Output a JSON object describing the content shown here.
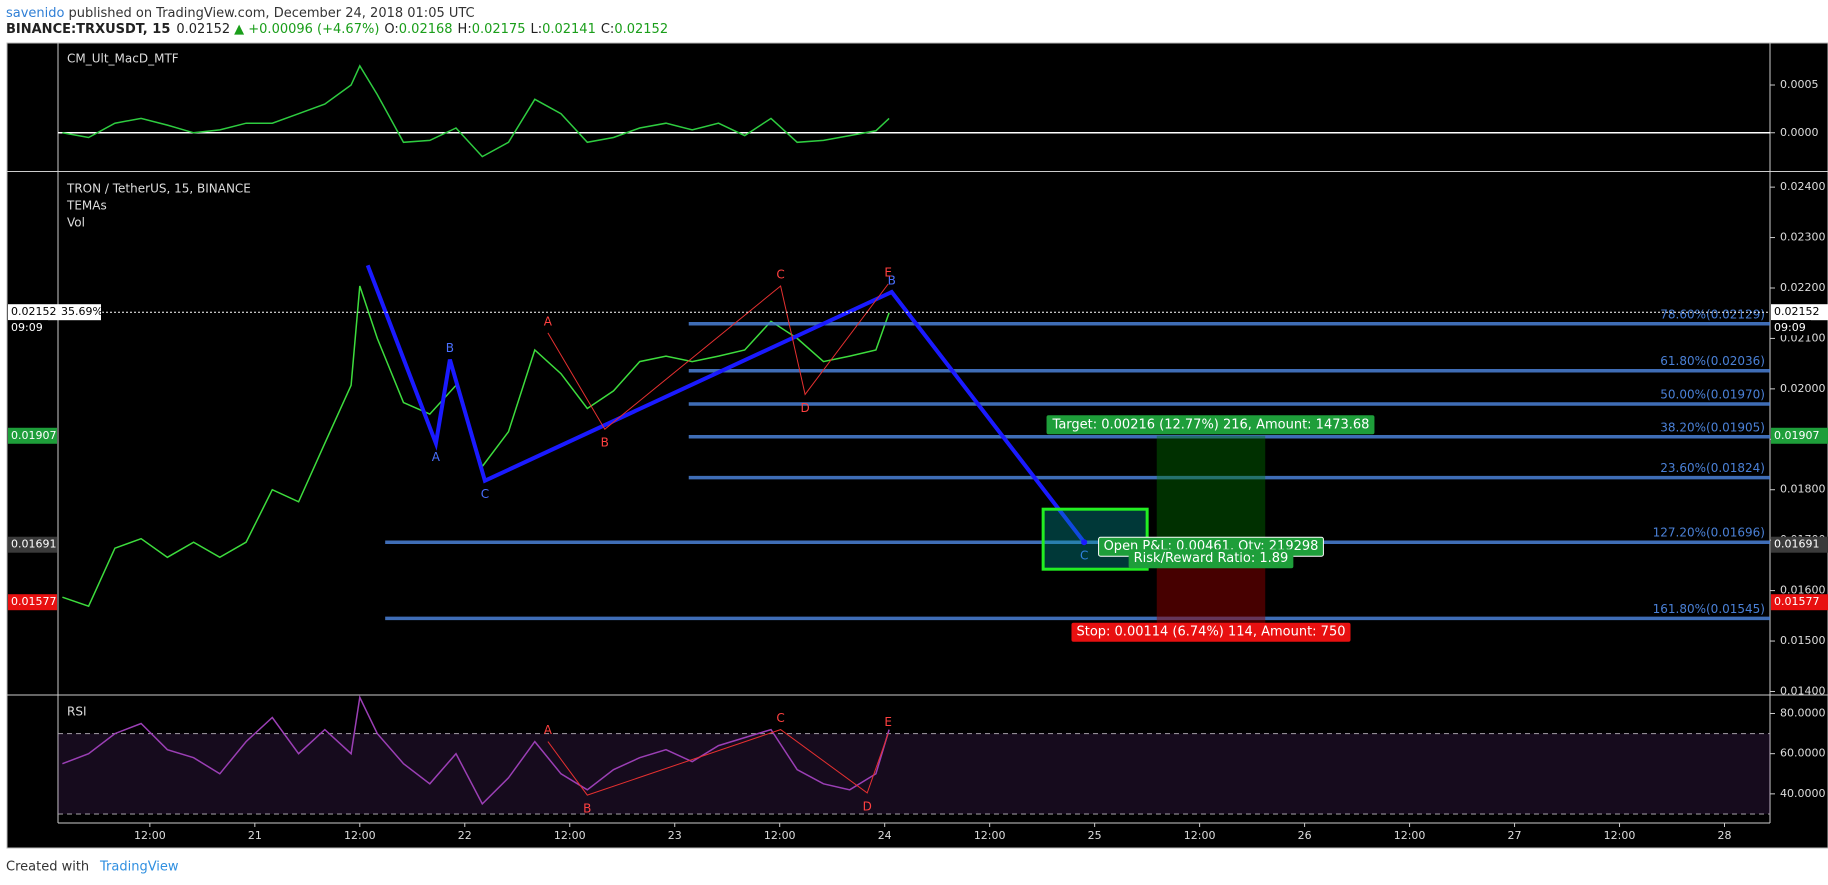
{
  "header": {
    "author": "savenido",
    "published": "published on TradingView.com, December 24, 2018 01:05 UTC",
    "symbol": "BINANCE:TRXUSDT, 15",
    "last": "0.02152",
    "change": "▲ +0.00096 (+4.67%)",
    "ohlc": [
      {
        "key": "O:",
        "value": "0.02168"
      },
      {
        "key": "H:",
        "value": "0.02175"
      },
      {
        "key": "L:",
        "value": "0.02141"
      },
      {
        "key": "C:",
        "value": "0.02152"
      }
    ]
  },
  "footer": {
    "created": "Created with",
    "brand": "TradingView"
  },
  "chart_data": [
    {
      "type": "line",
      "title": "CM_Ult_MacD_MTF",
      "x": [
        2,
        5,
        8,
        11,
        14,
        17,
        20,
        23,
        26,
        29,
        32,
        35,
        36,
        38,
        41,
        44,
        47,
        50,
        53,
        56,
        59,
        62,
        65,
        68,
        71,
        74,
        77,
        80,
        83,
        86,
        89,
        92,
        95,
        96.5
      ],
      "values": [
        0,
        -5e-05,
        0.0001,
        0.00015,
        8e-05,
        0,
        3e-05,
        0.0001,
        0.0001,
        0.0002,
        0.0003,
        0.0005,
        0.0007,
        0.0004,
        -0.0001,
        -8e-05,
        5e-05,
        -0.00025,
        -0.0001,
        0.00035,
        0.0002,
        -0.0001,
        -5e-05,
        5e-05,
        0.0001,
        3e-05,
        0.0001,
        -3e-05,
        0.00015,
        -0.0001,
        -8e-05,
        -3e-05,
        2e-05,
        0.00015
      ],
      "color": "#2ecc40",
      "baseline": 0,
      "ylim": [
        -0.00039,
        0.00094
      ],
      "yticks": [
        {
          "value": 0,
          "label": "0.0000"
        },
        {
          "value": 0.0005,
          "label": "0.0005"
        }
      ]
    },
    {
      "type": "line",
      "title": "TRON / TetherUS, 15, BINANCE",
      "legend_items": [
        "TEMAs",
        "Vol"
      ],
      "x": [
        2,
        5,
        8,
        11,
        14,
        17,
        20,
        23,
        26,
        29,
        32,
        35,
        36,
        38,
        41,
        44,
        47,
        50,
        53,
        56,
        59,
        62,
        65,
        68,
        71,
        74,
        77,
        80,
        83,
        86,
        89,
        92,
        95,
        96.5
      ],
      "values": [
        0.01587,
        0.01569,
        0.01684,
        0.01703,
        0.01666,
        0.01696,
        0.01666,
        0.01696,
        0.018,
        0.01776,
        0.01892,
        0.02007,
        0.02204,
        0.021,
        0.01973,
        0.0195,
        0.02007,
        0.01846,
        0.01915,
        0.02077,
        0.0203,
        0.01961,
        0.01996,
        0.02054,
        0.02065,
        0.02054,
        0.02065,
        0.02077,
        0.02134,
        0.021,
        0.02054,
        0.02065,
        0.02077,
        0.02151
      ],
      "color": "#3ddc3d",
      "ylim": [
        0.01395,
        0.02428
      ],
      "yticks": [
        {
          "value": 0.014,
          "label": "0.01400"
        },
        {
          "value": 0.015,
          "label": "0.01500"
        },
        {
          "value": 0.016,
          "label": "0.01600"
        },
        {
          "value": 0.017,
          "label": "0.01700"
        },
        {
          "value": 0.018,
          "label": "0.01800"
        },
        {
          "value": 0.019,
          "label": "0.01900"
        },
        {
          "value": 0.02,
          "label": "0.02000"
        },
        {
          "value": 0.021,
          "label": "0.02100"
        },
        {
          "value": 0.022,
          "label": "0.02200"
        },
        {
          "value": 0.023,
          "label": "0.02300"
        },
        {
          "value": 0.024,
          "label": "0.02400"
        }
      ],
      "price_line": {
        "value": 0.02152,
        "label": "0.02152",
        "change_label": "35.69%",
        "countdown": "09:09"
      },
      "axis_markers": [
        {
          "value": 0.01907,
          "label": "0.01907",
          "color": "#1e9e3a"
        },
        {
          "value": 0.01691,
          "label": "0.01691",
          "color": "#3a3a3a"
        },
        {
          "value": 0.01577,
          "label": "0.01577",
          "color": "#e81010"
        }
      ],
      "fib_levels": [
        {
          "value": 0.02129,
          "label": "78.60%(0.02129)",
          "from": 73.6
        },
        {
          "value": 0.02036,
          "label": "61.80%(0.02036)",
          "from": 73.6
        },
        {
          "value": 0.0197,
          "label": "50.00%(0.01970)",
          "from": 73.6
        },
        {
          "value": 0.01905,
          "label": "38.20%(0.01905)",
          "from": 73.6
        },
        {
          "value": 0.01824,
          "label": "23.60%(0.01824)",
          "from": 73.6
        },
        {
          "value": 0.01696,
          "label": "127.20%(0.01696)",
          "from": 38.9
        },
        {
          "value": 0.01545,
          "label": "161.80%(0.01545)",
          "from": 38.9
        }
      ],
      "fib_color": "#4a80d6",
      "patterns": [
        {
          "color": "#1a1aff",
          "width": 4,
          "x": [
            36.9,
            44.7,
            46.3,
            50.3,
            96.8,
            118.8
          ],
          "y": [
            0.02245,
            0.01892,
            0.02058,
            0.01818,
            0.02192,
            0.01696
          ],
          "labels": [
            null,
            "A",
            "B",
            "C",
            "B",
            "C"
          ],
          "label_color": "#4a70ff"
        },
        {
          "color": "#e53030",
          "width": 1,
          "x": [
            57.5,
            64,
            84.1,
            86.9,
            96.4
          ],
          "y": [
            0.02111,
            0.0192,
            0.02204,
            0.01989,
            0.02208
          ],
          "labels": [
            "A",
            "B",
            "C",
            "D",
            "E"
          ],
          "label_color": "#ff4040"
        }
      ],
      "position": {
        "from": 127.1,
        "to": 139.5,
        "entry": 0.01691,
        "target": 0.01907,
        "stop": 0.01577,
        "target_label": "Target: 0.00216 (12.77%) 216, Amount: 1473.68",
        "pnl_label": "Open P&L: 0.00461, Qty: 219298",
        "ratio_label": "Risk/Reward Ratio: 1.89",
        "stop_label": "Stop: 0.00114 (6.74%) 114, Amount: 750"
      }
    },
    {
      "type": "line",
      "title": "RSI",
      "x": [
        2,
        5,
        8,
        11,
        14,
        17,
        20,
        23,
        26,
        29,
        32,
        35,
        36,
        38,
        41,
        44,
        47,
        50,
        53,
        56,
        59,
        62,
        65,
        68,
        71,
        74,
        77,
        80,
        83,
        86,
        89,
        92,
        95,
        96.5
      ],
      "values": [
        55,
        60,
        70,
        75,
        62,
        58,
        50,
        66,
        78,
        60,
        72,
        60,
        88,
        70,
        55,
        45,
        60,
        35,
        48,
        66,
        50,
        42,
        52,
        58,
        62,
        56,
        64,
        68,
        72,
        52,
        45,
        42,
        50,
        72
      ],
      "color": "#9b3fb5",
      "bands": [
        70,
        30
      ],
      "patterns": [
        {
          "color": "#e53030",
          "width": 1,
          "x": [
            57.5,
            62,
            84.1,
            94,
            96.4
          ],
          "y": [
            66,
            39.4,
            72,
            40.5,
            70
          ],
          "labels": [
            "A",
            "B",
            "C",
            "D",
            "E"
          ],
          "label_color": "#ff4040"
        }
      ],
      "ylim": [
        25.5,
        88.7
      ],
      "yticks": [
        {
          "value": 40,
          "label": "40.0000"
        },
        {
          "value": 60,
          "label": "60.0000"
        },
        {
          "value": 80,
          "label": "80.0000"
        }
      ],
      "xlim": [
        1.5,
        197.2
      ],
      "xticks": [
        {
          "value": 12,
          "label": "12:00"
        },
        {
          "value": 24,
          "label": "21"
        },
        {
          "value": 36,
          "label": "12:00"
        },
        {
          "value": 48,
          "label": "22"
        },
        {
          "value": 60,
          "label": "12:00"
        },
        {
          "value": 72,
          "label": "23"
        },
        {
          "value": 84,
          "label": "12:00"
        },
        {
          "value": 96,
          "label": "24"
        },
        {
          "value": 108,
          "label": "12:00"
        },
        {
          "value": 120,
          "label": "25"
        },
        {
          "value": 132,
          "label": "12:00"
        },
        {
          "value": 144,
          "label": "26"
        },
        {
          "value": 156,
          "label": "12:00"
        },
        {
          "value": 168,
          "label": "27"
        },
        {
          "value": 180,
          "label": "12:00"
        },
        {
          "value": 192,
          "label": "28"
        }
      ]
    }
  ]
}
